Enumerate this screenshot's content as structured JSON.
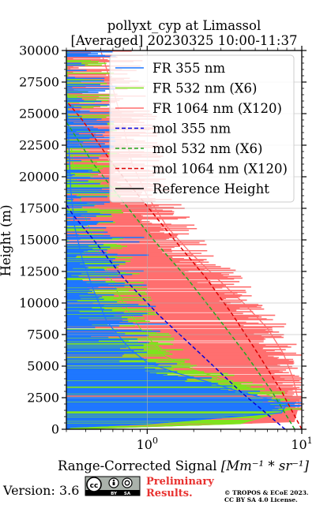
{
  "chart_data": {
    "type": "line",
    "title": "pollyxt_cyp at Limassol",
    "subtitle": "[Averaged] 20230325 10:00-11:37",
    "xlabel_prefix": "Range-Corrected Signal ",
    "xlabel_unit": "[Mm⁻¹ * sr⁻¹]",
    "ylabel": "Height (m)",
    "xscale": "log",
    "xlim": [
      0.3,
      10
    ],
    "ylim": [
      0,
      30000
    ],
    "grid": true,
    "legend_position": "upper-right",
    "y_ticks": [
      0,
      2500,
      5000,
      7500,
      10000,
      12500,
      15000,
      17500,
      20000,
      22500,
      25000,
      27500,
      30000
    ],
    "y_tick_labels": [
      "0",
      "2500",
      "5000",
      "7500",
      "10000",
      "12500",
      "15000",
      "17500",
      "20000",
      "22500",
      "25000",
      "27500",
      "30000"
    ],
    "x_major_ticks": [
      1,
      10
    ],
    "series": [
      {
        "name": "FR 355 nm",
        "color": "#1f77ff",
        "style": "solid",
        "x_center": [
          0.3,
          0.32,
          0.95,
          7.4,
          8.0,
          3.9,
          2.4,
          1.5,
          1.0,
          0.78,
          0.55,
          0.45,
          0.38,
          0.34,
          0.32,
          0.31,
          0.3,
          0.3
        ],
        "y": [
          0,
          150,
          400,
          1300,
          2000,
          3000,
          3800,
          4500,
          5300,
          6300,
          8500,
          11000,
          13500,
          16000,
          19000,
          23000,
          27000,
          30000
        ]
      },
      {
        "name": "FR 532 nm (X6)",
        "color": "#7fe31f",
        "style": "solid",
        "x_center": [
          0.3,
          4.0,
          8.5,
          6.5,
          3.6,
          2.0,
          1.3,
          0.9,
          0.7,
          0.55,
          0.45,
          0.38,
          0.33,
          0.31,
          0.3
        ],
        "y": [
          0,
          450,
          1600,
          2600,
          3700,
          4700,
          5800,
          8000,
          10000,
          12500,
          15000,
          17500,
          21000,
          25000,
          30000
        ]
      },
      {
        "name": "FR 1064 nm (X120)",
        "color": "#ff6f6f",
        "style": "solid",
        "x_center": [
          0.3,
          8.9,
          9.6,
          8.8,
          7.6,
          6.0,
          4.2,
          2.8,
          1.9,
          1.35,
          1.0,
          0.8,
          0.7,
          0.6,
          0.5
        ],
        "y": [
          0,
          600,
          2000,
          4000,
          6000,
          8000,
          10000,
          12000,
          14000,
          16000,
          18500,
          21000,
          24000,
          27000,
          30000
        ]
      },
      {
        "name": "mol 355 nm",
        "color": "#0000dd",
        "style": "dashed",
        "x": [
          7.8,
          4.0,
          2.2,
          1.2,
          0.7,
          0.45,
          0.33,
          0.3
        ],
        "y": [
          0,
          3000,
          6000,
          9000,
          12000,
          15000,
          17000,
          17800
        ]
      },
      {
        "name": "mol 532 nm (X6)",
        "color": "#22aa22",
        "style": "dashed",
        "x": [
          9.0,
          6.4,
          4.3,
          2.8,
          1.8,
          1.1,
          0.7,
          0.45,
          0.32,
          0.3
        ],
        "y": [
          0,
          3000,
          6000,
          9000,
          12000,
          15000,
          18000,
          21000,
          23800,
          24300
        ]
      },
      {
        "name": "mol 1064 nm (X120)",
        "color": "#dd0000",
        "style": "dashed",
        "x": [
          10.0,
          7.4,
          5.2,
          3.6,
          2.4,
          1.5,
          0.95,
          0.6,
          0.38,
          0.3
        ],
        "y": [
          0,
          3000,
          6000,
          9000,
          12000,
          15000,
          18000,
          21000,
          24500,
          26000
        ]
      },
      {
        "name": "Reference Height",
        "color": "#000000",
        "style": "solid",
        "x": [],
        "y": []
      }
    ]
  },
  "footer": {
    "version_label": "Version: 3.6",
    "cc_text": "cc",
    "by_label": "BY",
    "sa_label": "SA",
    "preliminary_line1": "Preliminary",
    "preliminary_line2": "Results.",
    "copyright_line1": "© TROPOS & ECoE 2023.",
    "copyright_line2": "CC BY SA 4.0 License."
  }
}
